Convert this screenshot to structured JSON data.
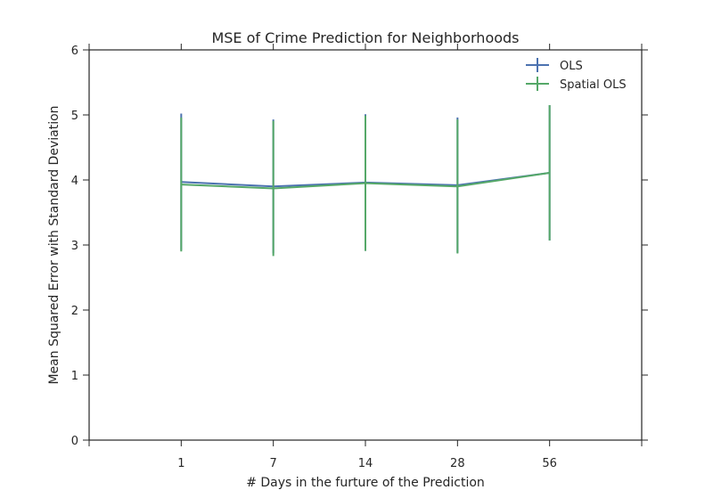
{
  "chart_data": {
    "type": "line",
    "title": "MSE of Crime Prediction for Neighborhoods",
    "xlabel": "# Days in the furture of the Prediction",
    "ylabel": "Mean Squared Error with Standard Deviation",
    "categories": [
      "1",
      "7",
      "14",
      "28",
      "56"
    ],
    "ylim": [
      0,
      6
    ],
    "yticks": [
      "0",
      "1",
      "2",
      "3",
      "4",
      "5",
      "6"
    ],
    "grid": false,
    "legend_position": "top-right",
    "error_bars": true,
    "series": [
      {
        "name": "OLS",
        "color": "#4c72b0",
        "values": [
          3.97,
          3.9,
          3.96,
          3.92,
          4.11
        ],
        "errors": [
          1.05,
          1.03,
          1.05,
          1.04,
          1.04
        ]
      },
      {
        "name": "Spatial OLS",
        "color": "#55a868",
        "values": [
          3.93,
          3.87,
          3.95,
          3.9,
          4.11
        ],
        "errors": [
          1.03,
          1.04,
          1.04,
          1.03,
          1.04
        ]
      }
    ]
  }
}
